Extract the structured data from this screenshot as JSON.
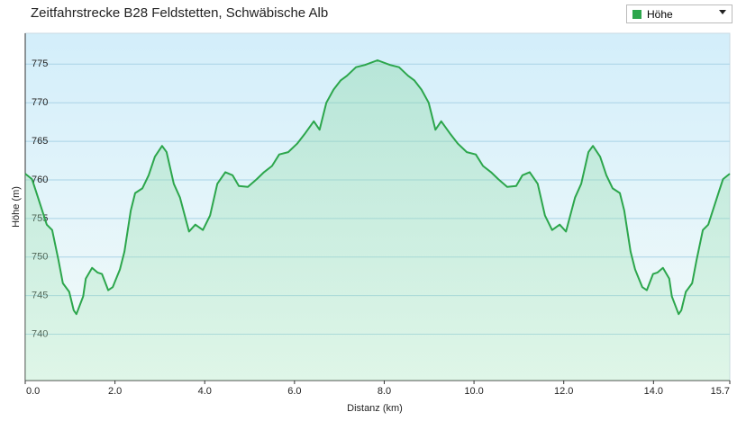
{
  "chart_data": {
    "type": "area-line",
    "title": "Zeitfahrstrecke B28 Feldstetten, Schwäbische Alb",
    "x_label": "Distanz (km)",
    "y_label": "Höhe (m)",
    "x": [
      0,
      0.15,
      0.24,
      0.48,
      0.6,
      0.74,
      0.84,
      0.98,
      1.08,
      1.14,
      1.29,
      1.35,
      1.49,
      1.61,
      1.71,
      1.85,
      1.95,
      2.11,
      2.21,
      2.35,
      2.45,
      2.61,
      2.75,
      2.89,
      3.05,
      3.15,
      3.31,
      3.45,
      3.65,
      3.79,
      3.96,
      4.12,
      4.28,
      4.46,
      4.62,
      4.76,
      4.96,
      5.16,
      5.32,
      5.5,
      5.66,
      5.86,
      6.06,
      6.22,
      6.43,
      6.56,
      6.71,
      6.87,
      7.03,
      7.17,
      7.37,
      7.57,
      7.85,
      8.13,
      8.33,
      8.53,
      8.67,
      8.83,
      8.99,
      9.14,
      9.27,
      9.48,
      9.64,
      9.84,
      10.04,
      10.2,
      10.38,
      10.54,
      10.74,
      10.94,
      11.08,
      11.24,
      11.42,
      11.58,
      11.74,
      11.91,
      12.05,
      12.25,
      12.39,
      12.55,
      12.65,
      12.81,
      12.95,
      13.09,
      13.25,
      13.35,
      13.49,
      13.59,
      13.75,
      13.85,
      13.99,
      14.09,
      14.21,
      14.35,
      14.41,
      14.56,
      14.62,
      14.72,
      14.86,
      14.96,
      15.1,
      15.22,
      15.46,
      15.55,
      15.7
    ],
    "series": [
      {
        "name": "Höhe",
        "color": "#2ca64c",
        "values": [
          760.8,
          760.1,
          758.5,
          754.2,
          753.5,
          749.6,
          746.6,
          745.5,
          743.1,
          742.6,
          744.9,
          747.2,
          748.6,
          748.0,
          747.8,
          745.7,
          746.1,
          748.4,
          750.7,
          756.0,
          758.3,
          758.9,
          760.6,
          763.0,
          764.4,
          763.6,
          759.5,
          757.7,
          753.3,
          754.2,
          753.5,
          755.4,
          759.5,
          761.0,
          760.6,
          759.2,
          759.1,
          760.1,
          761.0,
          761.8,
          763.3,
          763.6,
          764.7,
          765.9,
          767.6,
          766.5,
          770.0,
          771.7,
          772.9,
          773.5,
          774.6,
          774.9,
          775.5,
          774.9,
          774.6,
          773.5,
          772.9,
          771.7,
          770.0,
          766.5,
          767.6,
          765.9,
          764.7,
          763.6,
          763.3,
          761.8,
          761.0,
          760.1,
          759.1,
          759.2,
          760.6,
          761.0,
          759.5,
          755.4,
          753.5,
          754.2,
          753.3,
          757.7,
          759.5,
          763.6,
          764.4,
          763.0,
          760.6,
          758.9,
          758.3,
          756.0,
          750.7,
          748.4,
          746.1,
          745.7,
          747.8,
          748.0,
          748.6,
          747.2,
          744.9,
          742.6,
          743.1,
          745.5,
          746.6,
          749.6,
          753.5,
          754.2,
          758.5,
          760.1,
          760.8
        ]
      }
    ],
    "xlim": [
      0,
      15.7
    ],
    "xticks": [
      {
        "value": 0,
        "label": "0.0"
      },
      {
        "value": 2,
        "label": "2.0"
      },
      {
        "value": 4,
        "label": "4.0"
      },
      {
        "value": 6,
        "label": "6.0"
      },
      {
        "value": 8,
        "label": "8.0"
      },
      {
        "value": 10,
        "label": "10.0"
      },
      {
        "value": 12,
        "label": "12.0"
      },
      {
        "value": 14,
        "label": "14.0"
      },
      15.7
    ],
    "ylim": [
      734,
      779
    ],
    "yticks": [
      740,
      745,
      750,
      755,
      760,
      765,
      770,
      775
    ],
    "grid": true,
    "legend": "top-right"
  }
}
